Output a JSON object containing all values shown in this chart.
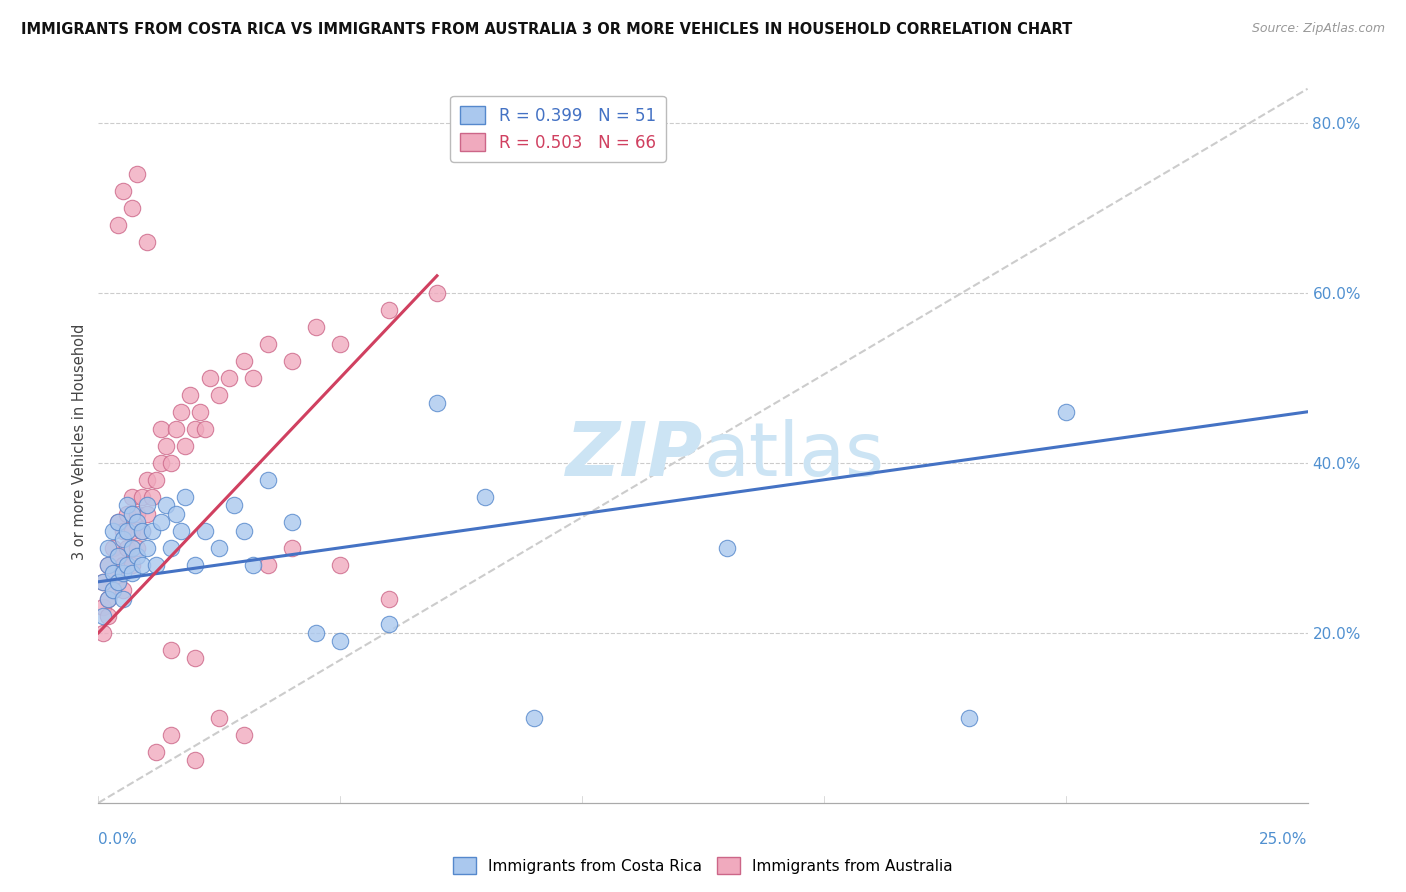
{
  "title": "IMMIGRANTS FROM COSTA RICA VS IMMIGRANTS FROM AUSTRALIA 3 OR MORE VEHICLES IN HOUSEHOLD CORRELATION CHART",
  "source": "Source: ZipAtlas.com",
  "xmin": 0.0,
  "xmax": 0.25,
  "ymin": 0.0,
  "ymax": 0.85,
  "yticks": [
    0.2,
    0.4,
    0.6,
    0.8
  ],
  "ytick_labels": [
    "20.0%",
    "40.0%",
    "60.0%",
    "80.0%"
  ],
  "blue_scatter_x": [
    0.001,
    0.001,
    0.002,
    0.002,
    0.002,
    0.003,
    0.003,
    0.003,
    0.004,
    0.004,
    0.004,
    0.005,
    0.005,
    0.005,
    0.006,
    0.006,
    0.006,
    0.007,
    0.007,
    0.007,
    0.008,
    0.008,
    0.009,
    0.009,
    0.01,
    0.01,
    0.011,
    0.012,
    0.013,
    0.014,
    0.015,
    0.016,
    0.017,
    0.018,
    0.02,
    0.022,
    0.025,
    0.028,
    0.03,
    0.032,
    0.035,
    0.04,
    0.045,
    0.05,
    0.06,
    0.07,
    0.08,
    0.09,
    0.13,
    0.2,
    0.18
  ],
  "blue_scatter_y": [
    0.26,
    0.22,
    0.24,
    0.28,
    0.3,
    0.25,
    0.27,
    0.32,
    0.26,
    0.29,
    0.33,
    0.24,
    0.27,
    0.31,
    0.28,
    0.32,
    0.35,
    0.27,
    0.3,
    0.34,
    0.29,
    0.33,
    0.28,
    0.32,
    0.3,
    0.35,
    0.32,
    0.28,
    0.33,
    0.35,
    0.3,
    0.34,
    0.32,
    0.36,
    0.28,
    0.32,
    0.3,
    0.35,
    0.32,
    0.28,
    0.38,
    0.33,
    0.2,
    0.19,
    0.21,
    0.47,
    0.36,
    0.1,
    0.3,
    0.46,
    0.1
  ],
  "pink_scatter_x": [
    0.001,
    0.001,
    0.001,
    0.002,
    0.002,
    0.002,
    0.003,
    0.003,
    0.003,
    0.004,
    0.004,
    0.004,
    0.005,
    0.005,
    0.005,
    0.006,
    0.006,
    0.007,
    0.007,
    0.007,
    0.008,
    0.008,
    0.009,
    0.009,
    0.01,
    0.01,
    0.011,
    0.012,
    0.013,
    0.013,
    0.014,
    0.015,
    0.016,
    0.017,
    0.018,
    0.019,
    0.02,
    0.021,
    0.022,
    0.023,
    0.025,
    0.027,
    0.03,
    0.032,
    0.035,
    0.04,
    0.045,
    0.05,
    0.06,
    0.07,
    0.004,
    0.005,
    0.007,
    0.008,
    0.01,
    0.012,
    0.015,
    0.02,
    0.025,
    0.03,
    0.035,
    0.04,
    0.05,
    0.06,
    0.015,
    0.02
  ],
  "pink_scatter_y": [
    0.26,
    0.23,
    0.2,
    0.28,
    0.24,
    0.22,
    0.27,
    0.25,
    0.3,
    0.26,
    0.29,
    0.33,
    0.25,
    0.28,
    0.32,
    0.3,
    0.34,
    0.28,
    0.32,
    0.36,
    0.3,
    0.34,
    0.32,
    0.36,
    0.34,
    0.38,
    0.36,
    0.38,
    0.4,
    0.44,
    0.42,
    0.4,
    0.44,
    0.46,
    0.42,
    0.48,
    0.44,
    0.46,
    0.44,
    0.5,
    0.48,
    0.5,
    0.52,
    0.5,
    0.54,
    0.52,
    0.56,
    0.54,
    0.58,
    0.6,
    0.68,
    0.72,
    0.7,
    0.74,
    0.66,
    0.06,
    0.08,
    0.05,
    0.1,
    0.08,
    0.28,
    0.3,
    0.28,
    0.24,
    0.18,
    0.17
  ],
  "blue_line_x0": 0.0,
  "blue_line_x1": 0.25,
  "blue_line_y0": 0.26,
  "blue_line_y1": 0.46,
  "pink_line_x0": 0.0,
  "pink_line_x1": 0.07,
  "pink_line_y0": 0.2,
  "pink_line_y1": 0.62,
  "ref_line_x0": 0.0,
  "ref_line_x1": 0.25,
  "ref_line_y0": 0.0,
  "ref_line_y1": 0.84,
  "legend_entries": [
    {
      "label": "R = 0.399   N = 51",
      "color": "#aac8ee"
    },
    {
      "label": "R = 0.503   N = 66",
      "color": "#f0aabe"
    }
  ],
  "blue_color": "#aac8ee",
  "blue_edge_color": "#5588cc",
  "pink_color": "#f0aabe",
  "pink_edge_color": "#cc6688",
  "blue_line_color": "#4472c4",
  "pink_line_color": "#d04060",
  "ref_line_color": "#cccccc",
  "watermark_color": "#cce4f4",
  "grid_color": "#cccccc"
}
